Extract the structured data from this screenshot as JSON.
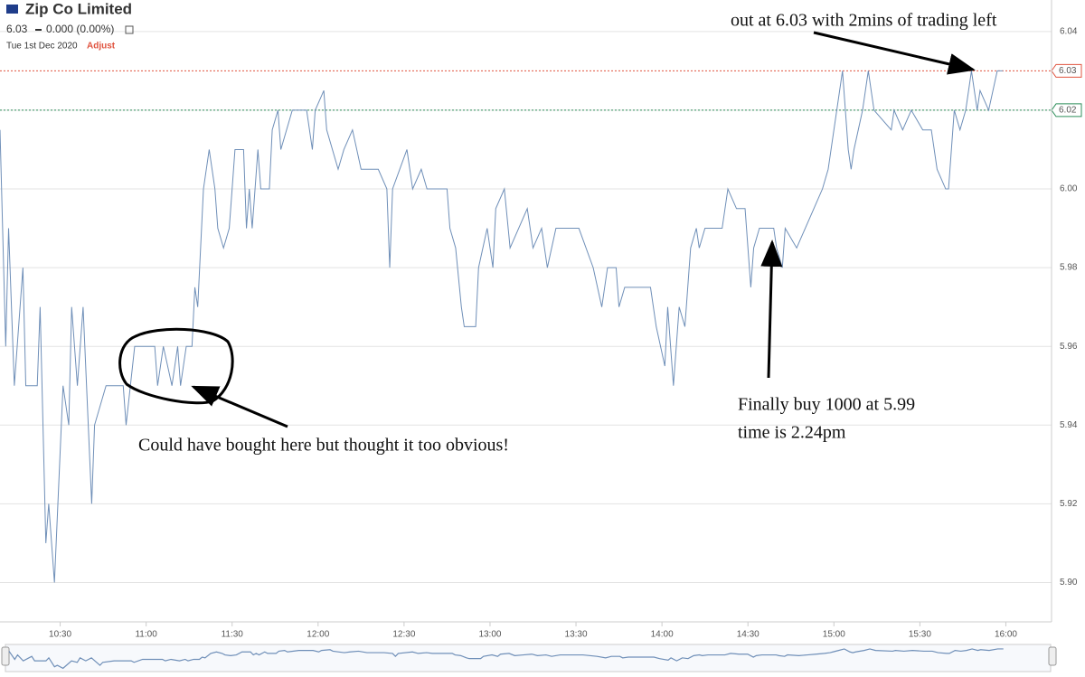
{
  "chart_data": {
    "type": "line",
    "title": "Zip Co Limited",
    "last_price": 6.03,
    "change_label": "0.000 (0.00%)",
    "date": "Tue 1st Dec 2020",
    "adjust_button": "Adjust",
    "color": "#6f8fb8",
    "x": [
      "10:09",
      "10:11",
      "10:12",
      "10:14",
      "10:16",
      "10:17",
      "10:18",
      "10:22",
      "10:23",
      "10:25",
      "10:26",
      "10:28",
      "10:31",
      "10:33",
      "10:34",
      "10:36",
      "10:38",
      "10:41",
      "10:42",
      "10:46",
      "10:52",
      "10:53",
      "10:56",
      "11:03",
      "11:04",
      "11:06",
      "11:09",
      "11:11",
      "11:12",
      "11:14",
      "11:16",
      "11:17",
      "11:18",
      "11:20",
      "11:22",
      "11:24",
      "11:25",
      "11:27",
      "11:29",
      "11:31",
      "11:34",
      "11:35",
      "11:36",
      "11:37",
      "11:39",
      "11:40",
      "11:43",
      "11:44",
      "11:46",
      "11:47",
      "11:51",
      "11:56",
      "11:58",
      "11:59",
      "12:02",
      "12:03",
      "12:07",
      "12:09",
      "12:12",
      "12:15",
      "12:21",
      "12:24",
      "12:25",
      "12:26",
      "12:31",
      "12:33",
      "12:36",
      "12:38",
      "12:45",
      "12:46",
      "12:48",
      "12:50",
      "12:51",
      "12:55",
      "12:56",
      "12:59",
      "13:01",
      "13:02",
      "13:05",
      "13:07",
      "13:10",
      "13:13",
      "13:15",
      "13:18",
      "13:20",
      "13:23",
      "13:31",
      "13:36",
      "13:39",
      "13:41",
      "13:44",
      "13:45",
      "13:47",
      "13:56",
      "13:58",
      "14:01",
      "14:02",
      "14:04",
      "14:06",
      "14:08",
      "14:10",
      "14:12",
      "14:13",
      "14:15",
      "14:21",
      "14:23",
      "14:26",
      "14:29",
      "14:31",
      "14:32",
      "14:34",
      "14:39",
      "14:40",
      "14:42",
      "14:43",
      "14:47",
      "14:50",
      "14:53",
      "14:56",
      "14:58",
      "14:59",
      "15:01",
      "15:03",
      "15:05",
      "15:06",
      "15:07",
      "15:10",
      "15:12",
      "15:14",
      "15:20",
      "15:21",
      "15:24",
      "15:27",
      "15:31",
      "15:34",
      "15:36",
      "15:39",
      "15:40",
      "15:42",
      "15:44",
      "15:46",
      "15:48",
      "15:50",
      "15:51",
      "15:54",
      "15:57",
      "15:59"
    ],
    "values": [
      6.015,
      5.96,
      5.99,
      5.95,
      5.97,
      5.98,
      5.95,
      5.95,
      5.97,
      5.91,
      5.92,
      5.9,
      5.95,
      5.94,
      5.97,
      5.95,
      5.97,
      5.92,
      5.94,
      5.95,
      5.95,
      5.94,
      5.96,
      5.96,
      5.95,
      5.96,
      5.95,
      5.96,
      5.95,
      5.96,
      5.96,
      5.975,
      5.97,
      6.0,
      6.01,
      6.0,
      5.99,
      5.985,
      5.99,
      6.01,
      6.01,
      5.99,
      6.0,
      5.99,
      6.01,
      6.0,
      6.0,
      6.015,
      6.02,
      6.01,
      6.02,
      6.02,
      6.01,
      6.02,
      6.025,
      6.015,
      6.005,
      6.01,
      6.015,
      6.005,
      6.005,
      6.0,
      5.98,
      6.0,
      6.01,
      6.0,
      6.005,
      6.0,
      6.0,
      5.99,
      5.985,
      5.97,
      5.965,
      5.965,
      5.98,
      5.99,
      5.98,
      5.995,
      6.0,
      5.985,
      5.99,
      5.995,
      5.985,
      5.99,
      5.98,
      5.99,
      5.99,
      5.98,
      5.97,
      5.98,
      5.98,
      5.97,
      5.975,
      5.975,
      5.965,
      5.955,
      5.97,
      5.95,
      5.97,
      5.965,
      5.985,
      5.99,
      5.985,
      5.99,
      5.99,
      6.0,
      5.995,
      5.995,
      5.975,
      5.985,
      5.99,
      5.99,
      5.985,
      5.98,
      5.99,
      5.985,
      5.99,
      5.995,
      6.0,
      6.005,
      6.01,
      6.02,
      6.03,
      6.01,
      6.005,
      6.01,
      6.02,
      6.03,
      6.02,
      6.015,
      6.02,
      6.015,
      6.02,
      6.015,
      6.015,
      6.005,
      6.0,
      6.0,
      6.02,
      6.015,
      6.02,
      6.03,
      6.02,
      6.025,
      6.02,
      6.03,
      6.03
    ],
    "xlim": [
      "10:09",
      "16:15"
    ],
    "xticks": [
      "10:30",
      "11:00",
      "11:30",
      "12:00",
      "12:30",
      "13:00",
      "13:30",
      "14:00",
      "14:30",
      "15:00",
      "15:30",
      "16:00"
    ],
    "ylim": [
      5.89,
      6.048
    ],
    "yticks": [
      {
        "value": 5.9,
        "label": "5.90"
      },
      5.92,
      5.94,
      5.96,
      5.98,
      {
        "value": 6,
        "label": "6.00"
      },
      6.02,
      6.04
    ],
    "grid": true,
    "price_lines": [
      {
        "value": 6.03,
        "color": "#e0533f"
      },
      {
        "value": 6.02,
        "color": "#2f8f5b"
      }
    ],
    "annotations": [
      "out at 6.03 with 2mins of trading left",
      "Could have bought here but thought it too obvious!",
      "Finally buy 1000 at 5.99",
      "time is 2.24pm"
    ]
  }
}
